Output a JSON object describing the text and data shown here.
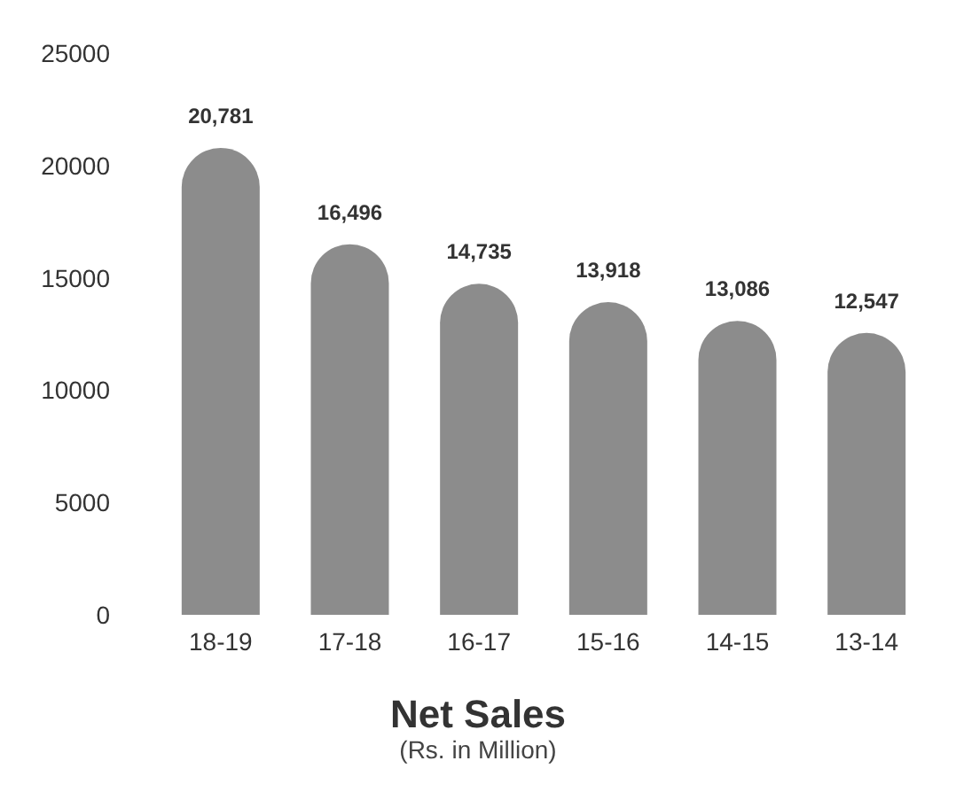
{
  "chart_data": {
    "type": "bar",
    "title": "Net Sales",
    "subtitle": "(Rs. in Million)",
    "categories": [
      "18-19",
      "17-18",
      "16-17",
      "15-16",
      "14-15",
      "13-14"
    ],
    "values": [
      20781,
      16496,
      14735,
      13918,
      13086,
      12547
    ],
    "value_labels": [
      "20,781",
      "16,496",
      "14,735",
      "13,918",
      "13,086",
      "12,547"
    ],
    "color": "#8c8c8c",
    "ylim": [
      0,
      25000
    ],
    "yticks": [
      0,
      5000,
      10000,
      15000,
      20000,
      25000
    ],
    "grid": false
  }
}
